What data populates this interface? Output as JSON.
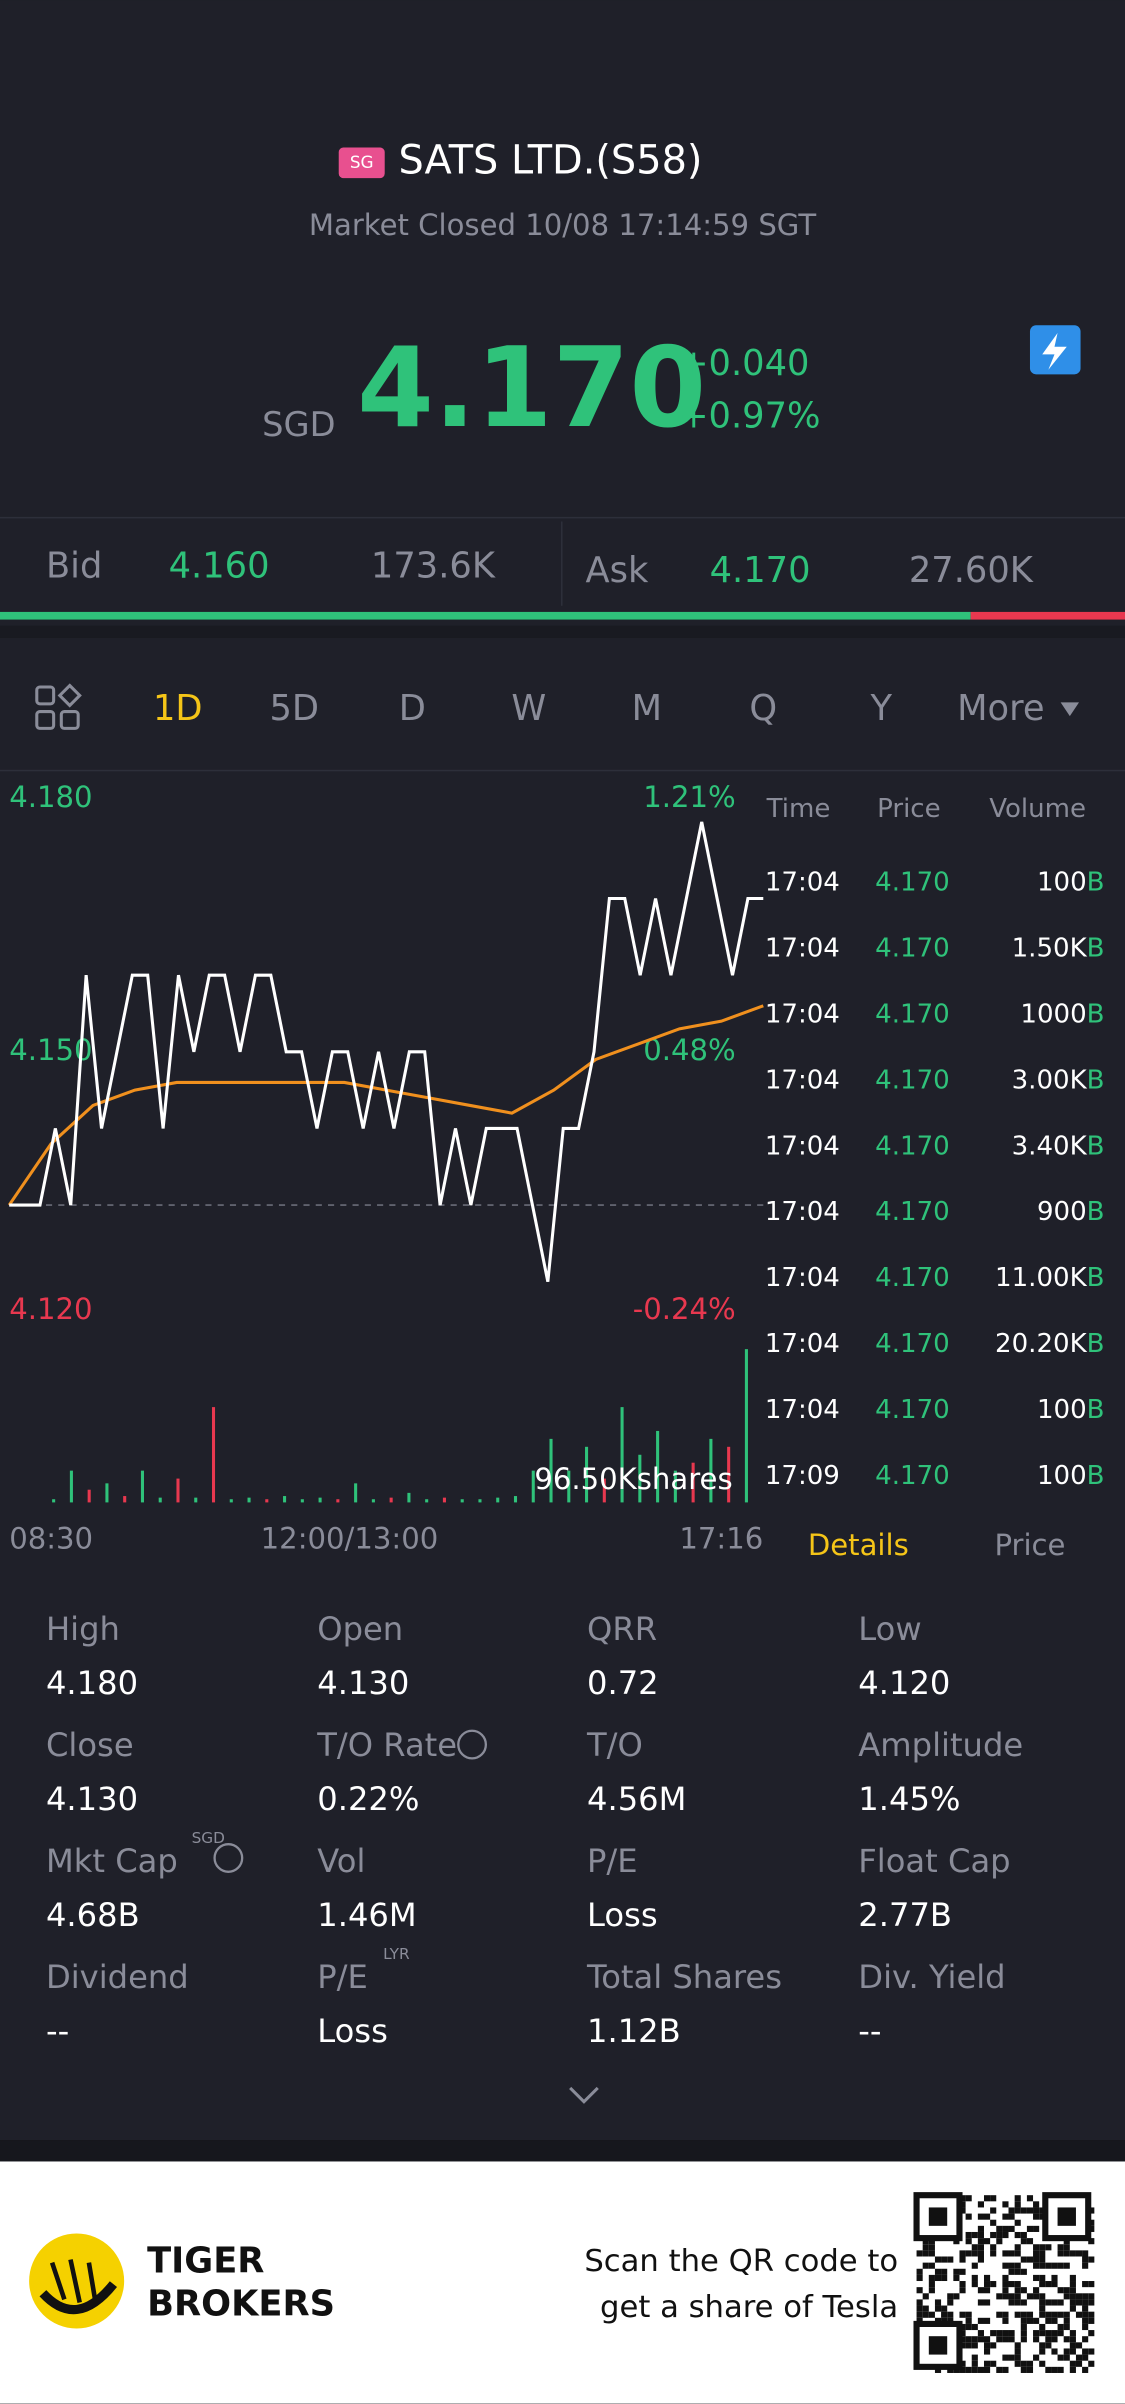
{
  "header": {
    "market": "SG",
    "title": "SATS LTD.(S58)",
    "status": "Market Closed 10/08 17:14:59 SGT"
  },
  "quote": {
    "currency": "SGD",
    "price": "4.170",
    "change": "+0.040",
    "change_pct": "+0.97%"
  },
  "bidask": {
    "bid_label": "Bid",
    "bid": "4.160",
    "bid_size": "173.6K",
    "ask_label": "Ask",
    "ask": "4.170",
    "ask_size": "27.60K"
  },
  "tabs": {
    "items": [
      "1D",
      "5D",
      "D",
      "W",
      "M",
      "Q",
      "Y",
      "More"
    ],
    "active": 0
  },
  "chart": {
    "ylabels": [
      "4.180",
      "4.150",
      "4.120"
    ],
    "pct_labels": [
      "1.21%",
      "0.48%",
      "-0.24%"
    ],
    "xlabels": [
      "08:30",
      "12:00/13:00",
      "17:16"
    ],
    "volume_label": "96.50Kshares",
    "ylim": [
      4.12,
      4.18
    ],
    "prev_close": 4.13,
    "price": [
      4.13,
      4.13,
      4.13,
      4.14,
      4.13,
      4.16,
      4.14,
      4.15,
      4.16,
      4.16,
      4.14,
      4.16,
      4.15,
      4.16,
      4.16,
      4.15,
      4.16,
      4.16,
      4.15,
      4.15,
      4.14,
      4.15,
      4.15,
      4.14,
      4.15,
      4.14,
      4.15,
      4.15,
      4.13,
      4.14,
      4.13,
      4.14,
      4.14,
      4.14,
      4.13,
      4.12,
      4.14,
      4.14,
      4.15,
      4.17,
      4.17,
      4.16,
      4.17,
      4.16,
      4.17,
      4.18,
      4.17,
      4.16,
      4.17,
      4.17
    ],
    "avg": [
      4.13,
      4.138,
      4.143,
      4.145,
      4.146,
      4.146,
      4.146,
      4.146,
      4.146,
      4.145,
      4.144,
      4.143,
      4.142,
      4.145,
      4.149,
      4.151,
      4.153,
      4.154,
      4.156
    ],
    "vlim": [
      0,
      96.5
    ],
    "volume": [
      2,
      20,
      8,
      12,
      4,
      20,
      3,
      15,
      3,
      60,
      2,
      3,
      2,
      4,
      2,
      3,
      2,
      12,
      2,
      3,
      6,
      2,
      3,
      2,
      2,
      3,
      4,
      20,
      40,
      20,
      35,
      15,
      60,
      30,
      45,
      20,
      25,
      40,
      35,
      96.5
    ],
    "volume_dir": [
      "up",
      "up",
      "down",
      "up",
      "down",
      "up",
      "up",
      "down",
      "up",
      "down",
      "up",
      "up",
      "down",
      "up",
      "up",
      "up",
      "down",
      "up",
      "up",
      "down",
      "up",
      "up",
      "down",
      "up",
      "up",
      "up",
      "up",
      "up",
      "up",
      "up",
      "up",
      "down",
      "up",
      "up",
      "up",
      "up",
      "down",
      "up",
      "down",
      "up"
    ]
  },
  "trades": {
    "headers": [
      "Time",
      "Price",
      "Volume"
    ],
    "rows": [
      [
        "17:04",
        "4.170",
        "100",
        "B"
      ],
      [
        "17:04",
        "4.170",
        "1.50K",
        "B"
      ],
      [
        "17:04",
        "4.170",
        "1000",
        "B"
      ],
      [
        "17:04",
        "4.170",
        "3.00K",
        "B"
      ],
      [
        "17:04",
        "4.170",
        "3.40K",
        "B"
      ],
      [
        "17:04",
        "4.170",
        "900",
        "B"
      ],
      [
        "17:04",
        "4.170",
        "11.00K",
        "B"
      ],
      [
        "17:04",
        "4.170",
        "20.20K",
        "B"
      ],
      [
        "17:04",
        "4.170",
        "100",
        "B"
      ],
      [
        "17:09",
        "4.170",
        "100",
        "B"
      ]
    ]
  },
  "detail_tabs": [
    "Details",
    "Price"
  ],
  "stats": [
    {
      "label": "High",
      "value": "4.180"
    },
    {
      "label": "Open",
      "value": "4.130"
    },
    {
      "label": "QRR",
      "value": "0.72"
    },
    {
      "label": "Low",
      "value": "4.120"
    },
    {
      "label": "Close",
      "value": "4.130"
    },
    {
      "label": "T/O Rate",
      "value": "0.22%"
    },
    {
      "label": "T/O",
      "value": "4.56M"
    },
    {
      "label": "Amplitude",
      "value": "1.45%"
    },
    {
      "label": "Mkt Cap",
      "sup": "SGD",
      "value": "4.68B"
    },
    {
      "label": "Vol",
      "value": "1.46M"
    },
    {
      "label": "P/E",
      "value": "Loss"
    },
    {
      "label": "Float Cap",
      "value": "2.77B"
    },
    {
      "label": "Dividend",
      "value": "--"
    },
    {
      "label": "P/E",
      "sup": "LYR",
      "value": "Loss"
    },
    {
      "label": "Total Shares",
      "value": "1.12B"
    },
    {
      "label": "Div. Yield",
      "value": "--"
    }
  ],
  "footer": {
    "brand": [
      "TIGER",
      "BROKERS"
    ],
    "cta": [
      "Scan the QR code to",
      "get a share of Tesla"
    ]
  }
}
